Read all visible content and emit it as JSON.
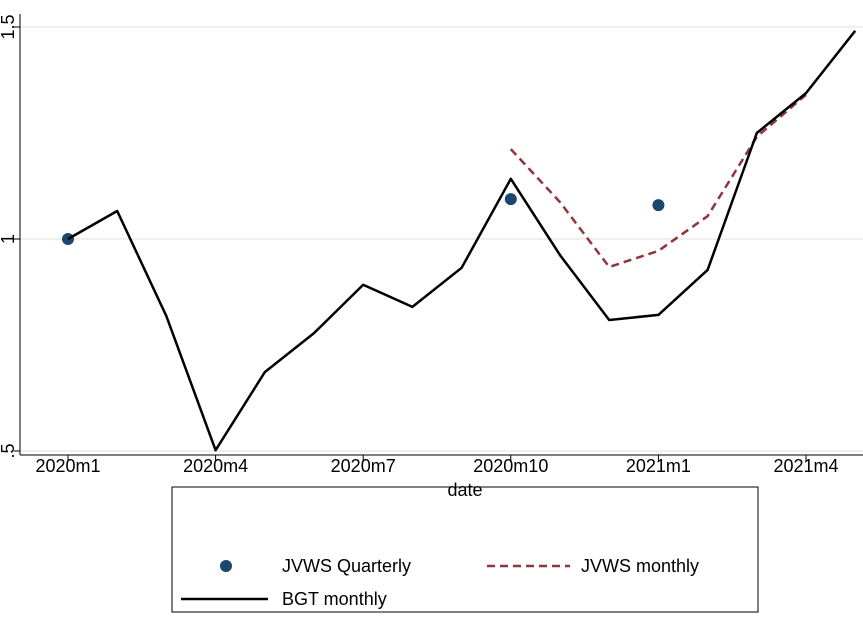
{
  "chart_data": {
    "type": "line",
    "x_label": "date",
    "categories": [
      "2020m1",
      null,
      null,
      "2020m4",
      null,
      null,
      "2020m7",
      null,
      null,
      "2020m10",
      null,
      null,
      "2021m1",
      null,
      null,
      "2021m4",
      null
    ],
    "ylim": [
      0.5,
      1.5
    ],
    "yticks": [
      {
        "value": 0.5,
        "label": ".5"
      },
      1,
      1.5
    ],
    "grid": true,
    "series": [
      {
        "name": "JVWS Quarterly",
        "color": "#1a476f",
        "mode": "markers",
        "values": [
          1.0,
          null,
          null,
          null,
          null,
          null,
          null,
          null,
          null,
          1.094,
          null,
          null,
          1.08,
          null,
          null,
          null,
          null
        ]
      },
      {
        "name": "JVWS monthly",
        "color": "#90353b",
        "mode": "dashed",
        "values": [
          null,
          null,
          null,
          null,
          null,
          null,
          null,
          null,
          null,
          1.212,
          1.087,
          0.934,
          0.972,
          1.054,
          1.241,
          1.34,
          null
        ]
      },
      {
        "name": "BGT monthly",
        "color": "#000000",
        "mode": "line",
        "values": [
          1.0,
          1.066,
          0.818,
          0.502,
          0.686,
          0.778,
          0.892,
          0.84,
          0.932,
          1.142,
          0.962,
          0.809,
          0.821,
          0.927,
          1.25,
          1.344,
          1.491
        ]
      }
    ]
  }
}
